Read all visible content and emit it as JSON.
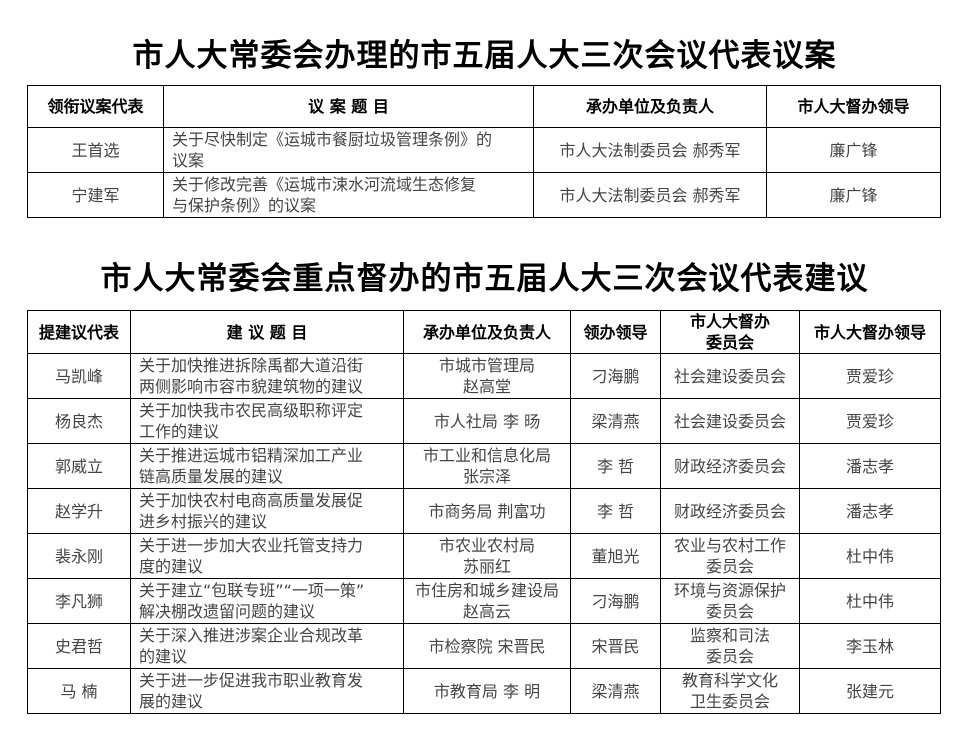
{
  "table1": {
    "title": "市人大常委会办理的市五届人大三次会议代表议案",
    "headers": [
      "领衔议案代表",
      "议 案 题 目",
      "承办单位及负责人",
      "市人大督办领导"
    ],
    "rows": [
      [
        "王首选",
        "关于尽快制定《运城市餐厨垃圾管理条例》的\n议案",
        "市人大法制委员会  郝秀军",
        "廉广锋"
      ],
      [
        "宁建军",
        "关于修改完善《运城市涑水河流域生态修复\n与保护条例》的议案",
        "市人大法制委员会  郝秀军",
        "廉广锋"
      ]
    ]
  },
  "table2": {
    "title": "市人大常委会重点督办的市五届人大三次会议代表建议",
    "headers": [
      "提建议代表",
      "建 议 题 目",
      "承办单位及负责人",
      "领办领导",
      "市人大督办\n委员会",
      "市人大督办领导"
    ],
    "rows": [
      [
        "马凯峰",
        "关于加快推进拆除禹都大道沿街\n两侧影响市容市貌建筑物的建议",
        "市城市管理局\n赵高堂",
        "刁海鹏",
        "社会建设委员会",
        "贾爱珍"
      ],
      [
        "杨良杰",
        "关于加快我市农民高级职称评定\n工作的建议",
        "市人社局   李   旸",
        "梁清燕",
        "社会建设委员会",
        "贾爱珍"
      ],
      [
        "郭威立",
        "关于推进运城市铝精深加工产业\n链高质量发展的建议",
        "市工业和信息化局\n张宗泽",
        "李   哲",
        "财政经济委员会",
        "潘志孝"
      ],
      [
        "赵学升",
        "关于加快农村电商高质量发展促\n进乡村振兴的建议",
        "市商务局   荆富功",
        "李   哲",
        "财政经济委员会",
        "潘志孝"
      ],
      [
        "裴永刚",
        "关于进一步加大农业托管支持力\n度的建议",
        "市农业农村局\n苏丽红",
        "董旭光",
        "农业与农村工作\n委员会",
        "杜中伟"
      ],
      [
        "李凡狮",
        "关于建立“包联专班”“一项一策”\n解决棚改遗留问题的建议",
        "市住房和城乡建设局\n赵高云",
        "刁海鹏",
        "环境与资源保护\n委员会",
        "杜中伟"
      ],
      [
        "史君哲",
        "关于深入推进涉案企业合规改革\n的建议",
        "市检察院  宋晋民",
        "宋晋民",
        "监察和司法\n委员会",
        "李玉林"
      ],
      [
        "马   楠",
        "关于进一步促进我市职业教育发\n展的建议",
        "市教育局   李  明",
        "梁清燕",
        "教育科学文化\n卫生委员会",
        "张建元"
      ]
    ]
  }
}
